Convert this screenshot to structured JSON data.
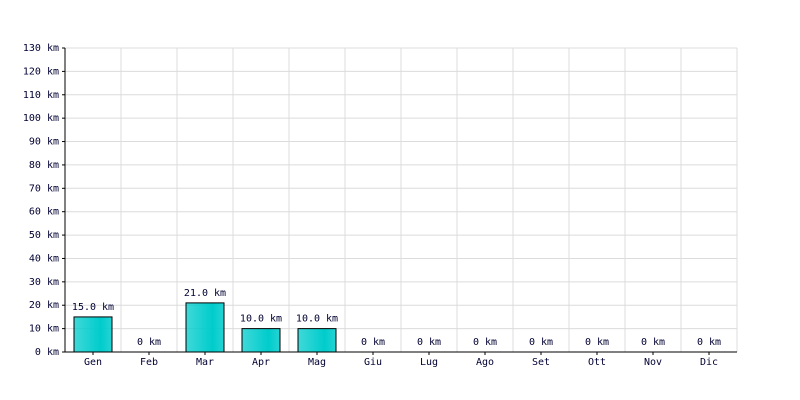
{
  "chart_data": {
    "type": "bar",
    "categories": [
      "Gen",
      "Feb",
      "Mar",
      "Apr",
      "Mag",
      "Giu",
      "Lug",
      "Ago",
      "Set",
      "Ott",
      "Nov",
      "Dic"
    ],
    "values": [
      15,
      0,
      21,
      10,
      10,
      0,
      0,
      0,
      0,
      0,
      0,
      0
    ],
    "value_labels": [
      "15.0 km",
      "0 km",
      "21.0 km",
      "10.0 km",
      "10.0 km",
      "0 km",
      "0 km",
      "0 km",
      "0 km",
      "0 km",
      "0 km",
      "0 km"
    ],
    "color": "#00cccc",
    "ylim": [
      0,
      130
    ],
    "yticks": [
      {
        "value": 0,
        "label": "0 km"
      },
      {
        "value": 10,
        "label": "10 km"
      },
      {
        "value": 20,
        "label": "20 km"
      },
      {
        "value": 30,
        "label": "30 km"
      },
      {
        "value": 40,
        "label": "40 km"
      },
      {
        "value": 50,
        "label": "50 km"
      },
      {
        "value": 60,
        "label": "60 km"
      },
      {
        "value": 70,
        "label": "70 km"
      },
      {
        "value": 80,
        "label": "80 km"
      },
      {
        "value": 90,
        "label": "90 km"
      },
      {
        "value": 100,
        "label": "100 km"
      },
      {
        "value": 110,
        "label": "110 km"
      },
      {
        "value": 120,
        "label": "120 km"
      },
      {
        "value": 130,
        "label": "130 km"
      }
    ],
    "grid": true
  }
}
